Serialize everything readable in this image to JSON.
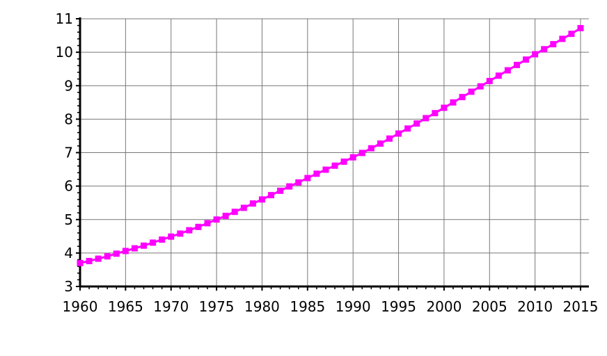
{
  "chart_data": {
    "type": "line",
    "title": "",
    "xlabel": "",
    "ylabel": "",
    "xlim": [
      1960,
      2015
    ],
    "ylim": [
      3,
      11
    ],
    "x_ticks": [
      "1960",
      "1965",
      "1970",
      "1975",
      "1980",
      "1985",
      "1990",
      "1995",
      "2000",
      "2005",
      "2010",
      "2015"
    ],
    "y_ticks": [
      "3",
      "4",
      "5",
      "6",
      "7",
      "8",
      "9",
      "10",
      "11"
    ],
    "grid": true,
    "legend": "none",
    "series": [
      {
        "color": "#ff00ff",
        "marker": "square",
        "x": [
          1960,
          1961,
          1962,
          1963,
          1964,
          1965,
          1966,
          1967,
          1968,
          1969,
          1970,
          1971,
          1972,
          1973,
          1974,
          1975,
          1976,
          1977,
          1978,
          1979,
          1980,
          1981,
          1982,
          1983,
          1984,
          1985,
          1986,
          1987,
          1988,
          1989,
          1990,
          1991,
          1992,
          1993,
          1994,
          1995,
          1996,
          1997,
          1998,
          1999,
          2000,
          2001,
          2002,
          2003,
          2004,
          2005,
          2006,
          2007,
          2008,
          2009,
          2010,
          2011,
          2012,
          2013,
          2014,
          2015
        ],
        "values": [
          3.7,
          3.76,
          3.83,
          3.9,
          3.98,
          4.06,
          4.14,
          4.22,
          4.31,
          4.4,
          4.49,
          4.58,
          4.68,
          4.78,
          4.89,
          5.0,
          5.11,
          5.23,
          5.35,
          5.48,
          5.6,
          5.73,
          5.86,
          5.99,
          6.11,
          6.24,
          6.37,
          6.49,
          6.61,
          6.73,
          6.86,
          6.99,
          7.13,
          7.27,
          7.42,
          7.57,
          7.72,
          7.87,
          8.03,
          8.18,
          8.34,
          8.5,
          8.66,
          8.82,
          8.98,
          9.14,
          9.3,
          9.46,
          9.62,
          9.78,
          9.94,
          10.09,
          10.24,
          10.4,
          10.55,
          10.72
        ]
      }
    ]
  }
}
